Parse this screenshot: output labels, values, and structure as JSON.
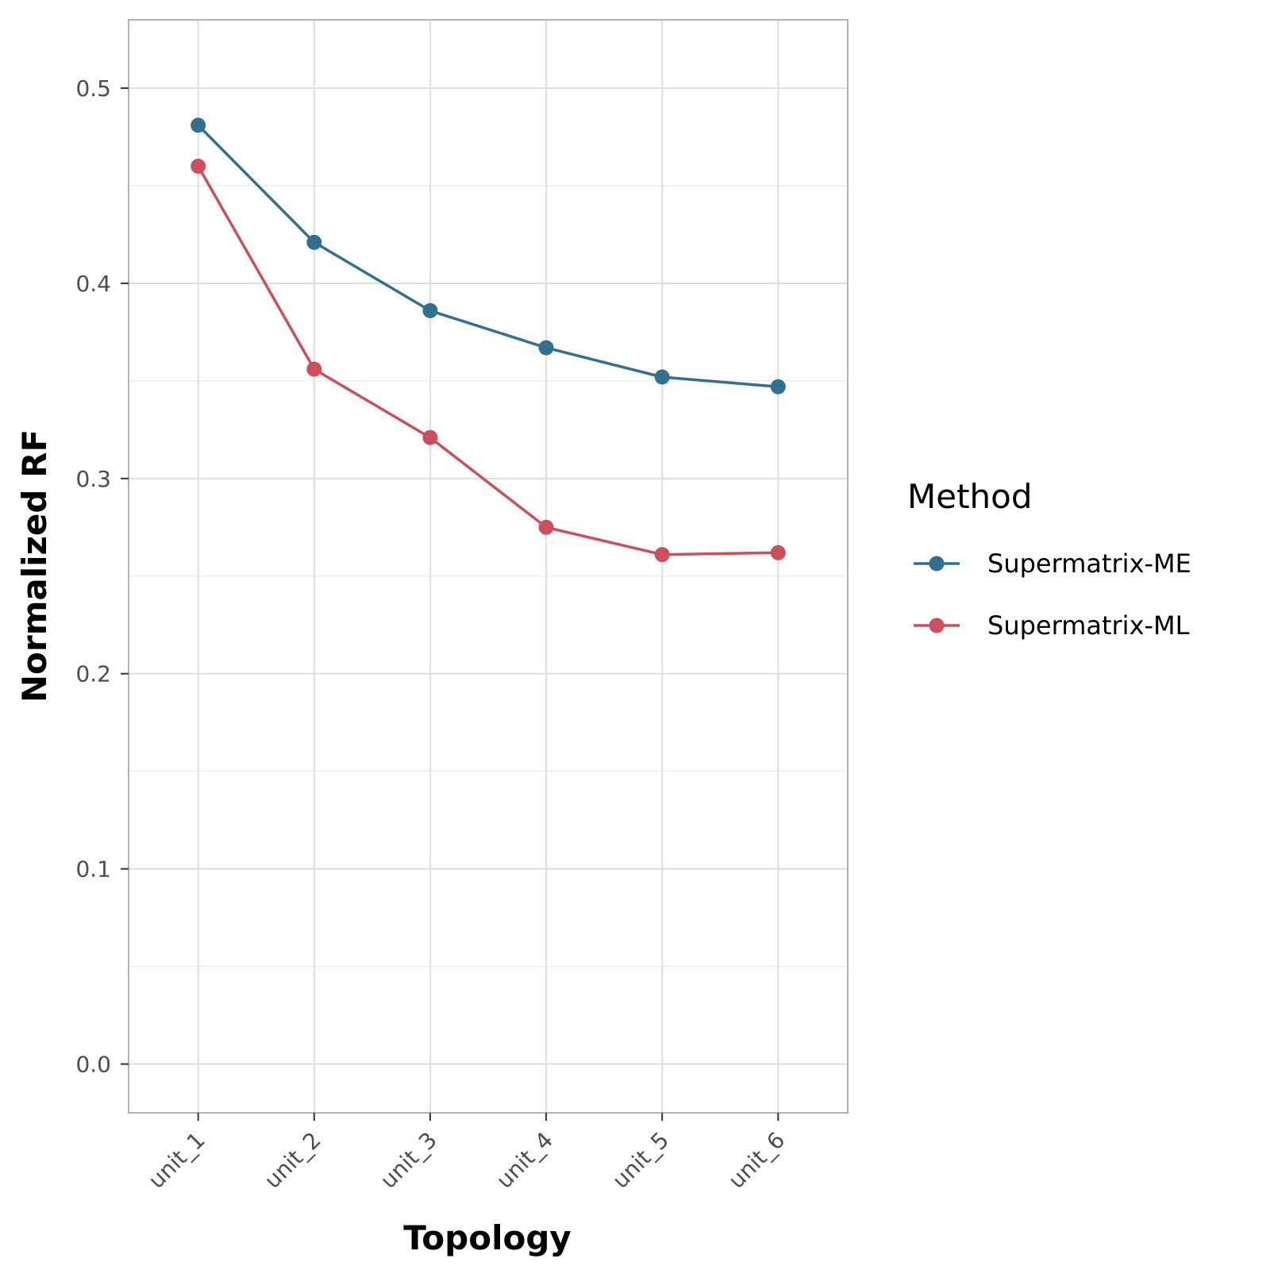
{
  "chart_data": {
    "type": "line",
    "title": "",
    "xlabel": "Topology",
    "ylabel": "Normalized RF",
    "categories": [
      "unit_1",
      "unit_2",
      "unit_3",
      "unit_4",
      "unit_5",
      "unit_6"
    ],
    "yticks": [
      "0.0",
      "0.1",
      "0.2",
      "0.3",
      "0.4",
      "0.5"
    ],
    "ylim": [
      -0.025,
      0.535
    ],
    "grid": true,
    "legend": {
      "title": "Method",
      "placement": "right"
    },
    "series": [
      {
        "name": "Supermatrix-ME",
        "color": "#31708f",
        "values": [
          0.481,
          0.421,
          0.386,
          0.367,
          0.352,
          0.347
        ]
      },
      {
        "name": "Supermatrix-ML",
        "color": "#cd4f5c",
        "values": [
          0.46,
          0.356,
          0.321,
          0.275,
          0.261,
          0.262
        ]
      }
    ]
  }
}
